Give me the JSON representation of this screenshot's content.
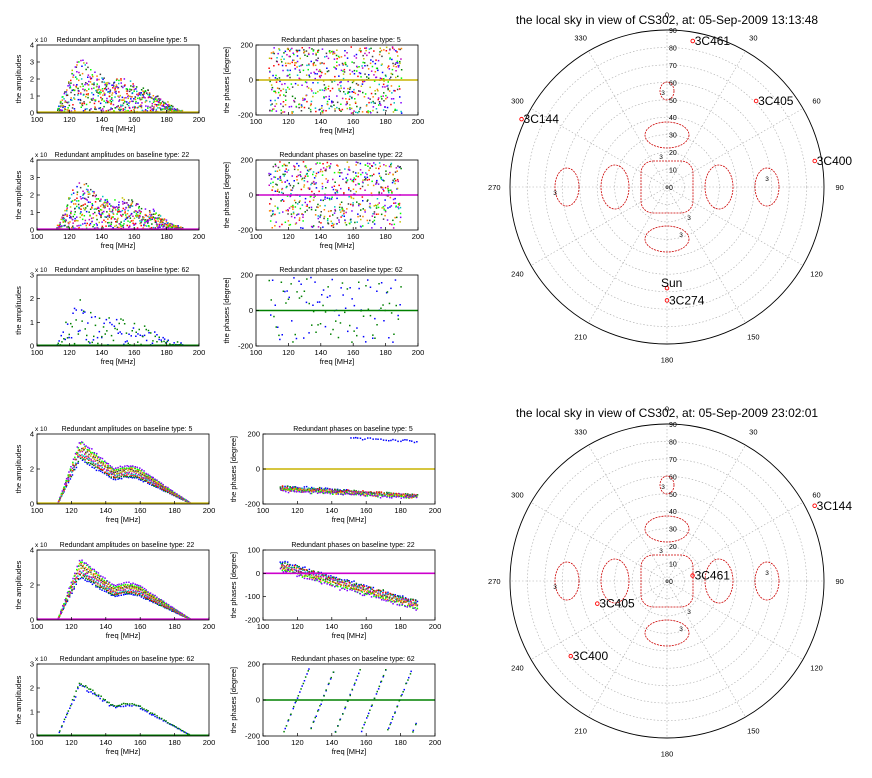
{
  "figure": {
    "colors": {
      "cycle": [
        "#0000ff",
        "#008000",
        "#ff0000",
        "#00bfbf",
        "#bf00bf",
        "#bfbf00",
        "#404040",
        "#ff8000",
        "#00ff00",
        "#8000ff"
      ],
      "flat_line_5": "#c8b400",
      "flat_line_22": "#cc00cc",
      "flat_line_62": "#008000",
      "source_marker": "#ff0000",
      "contour": "#cc0000",
      "grid": "#aaaaaa"
    }
  },
  "chart_data": [
    {
      "id": "s1_amp5",
      "type": "scatter",
      "title": "Redundant amplitudes on baseline type: 5",
      "exponent_label": "x 10",
      "xlabel": "freq [MHz]",
      "ylabel": "the amplitudes",
      "xlim": [
        100,
        200
      ],
      "ylim": [
        0,
        4
      ],
      "xticks": [
        100,
        120,
        140,
        160,
        180,
        200
      ],
      "yticks": [
        0,
        1,
        2,
        3,
        4
      ],
      "kind": "amp_noisy",
      "peak": 2.6,
      "flat_value": 0.05,
      "flat_color": "flat_line_5",
      "n_series": 10
    },
    {
      "id": "s1_ph5",
      "type": "scatter",
      "title": "Redundant phases on baseline type: 5",
      "xlabel": "freq [MHz]",
      "ylabel": "the phases [degree]",
      "xlim": [
        100,
        200
      ],
      "ylim": [
        -200,
        200
      ],
      "xticks": [
        100,
        120,
        140,
        160,
        180,
        200
      ],
      "yticks": [
        -200,
        0,
        200
      ],
      "kind": "phase_noisy",
      "flat_value": 0,
      "flat_color": "flat_line_5",
      "n_series": 10
    },
    {
      "id": "s1_amp22",
      "type": "scatter",
      "title": "Redundant amplitudes on baseline type: 22",
      "exponent_label": "x 10",
      "xlabel": "freq [MHz]",
      "ylabel": "the amplitudes",
      "xlim": [
        100,
        200
      ],
      "ylim": [
        0,
        4
      ],
      "xticks": [
        100,
        120,
        140,
        160,
        180,
        200
      ],
      "yticks": [
        0,
        1,
        2,
        3,
        4
      ],
      "kind": "amp_noisy",
      "peak": 2.4,
      "flat_value": 0.05,
      "flat_color": "flat_line_22",
      "n_series": 10
    },
    {
      "id": "s1_ph22",
      "type": "scatter",
      "title": "Redundant phases on baseline type: 22",
      "xlabel": "freq [MHz]",
      "ylabel": "the phases [degree]",
      "xlim": [
        100,
        200
      ],
      "ylim": [
        -200,
        200
      ],
      "xticks": [
        100,
        120,
        140,
        160,
        180,
        200
      ],
      "yticks": [
        -200,
        0,
        200
      ],
      "kind": "phase_noisy",
      "flat_value": 0,
      "flat_color": "flat_line_22",
      "n_series": 10
    },
    {
      "id": "s1_amp62",
      "type": "scatter",
      "title": "Redundant amplitudes on baseline type: 62",
      "exponent_label": "x 10",
      "xlabel": "freq [MHz]",
      "ylabel": "the amplitudes",
      "xlim": [
        100,
        200
      ],
      "ylim": [
        0,
        3
      ],
      "xticks": [
        100,
        120,
        140,
        160,
        180,
        200
      ],
      "yticks": [
        0,
        1,
        2,
        3
      ],
      "kind": "amp_noisy",
      "peak": 1.6,
      "flat_value": 0.03,
      "flat_color": "flat_line_62",
      "n_series": 2
    },
    {
      "id": "s1_ph62",
      "type": "scatter",
      "title": "Redundant phases on baseline type: 62",
      "xlabel": "freq [MHz]",
      "ylabel": "the phases [degree]",
      "xlim": [
        100,
        200
      ],
      "ylim": [
        -200,
        200
      ],
      "xticks": [
        100,
        120,
        140,
        160,
        180,
        200
      ],
      "yticks": [
        -200,
        0,
        200
      ],
      "kind": "phase_noisy",
      "flat_value": 0,
      "flat_color": "flat_line_62",
      "n_series": 2
    },
    {
      "id": "s2_amp5",
      "type": "scatter",
      "title": "Redundant amplitudes on baseline type: 5",
      "exponent_label": "x 10",
      "xlabel": "freq [MHz]",
      "ylabel": "the amplitudes",
      "xlim": [
        100,
        200
      ],
      "ylim": [
        0,
        4
      ],
      "xticks": [
        100,
        120,
        140,
        160,
        180,
        200
      ],
      "yticks": [
        0,
        2,
        4
      ],
      "kind": "amp_smooth",
      "peak": 3.0,
      "flat_value": 0.05,
      "flat_color": "flat_line_5",
      "n_series": 10
    },
    {
      "id": "s2_ph5",
      "type": "scatter",
      "title": "Redundant phases on baseline type: 5",
      "xlabel": "freq [MHz]",
      "ylabel": "the phases [degree]",
      "xlim": [
        100,
        200
      ],
      "ylim": [
        -200,
        200
      ],
      "xticks": [
        100,
        120,
        140,
        160,
        180,
        200
      ],
      "yticks": [
        -200,
        0,
        200
      ],
      "kind": "phase_bands",
      "flat_value": 0,
      "flat_color": "flat_line_5",
      "n_series": 10
    },
    {
      "id": "s2_amp22",
      "type": "scatter",
      "title": "Redundant amplitudes on baseline type: 22",
      "exponent_label": "x 10",
      "xlabel": "freq [MHz]",
      "ylabel": "the amplitudes",
      "xlim": [
        100,
        200
      ],
      "ylim": [
        0,
        4
      ],
      "xticks": [
        100,
        120,
        140,
        160,
        180,
        200
      ],
      "yticks": [
        0,
        2,
        4
      ],
      "kind": "amp_smooth",
      "peak": 2.9,
      "flat_value": 0.05,
      "flat_color": "flat_line_22",
      "n_series": 10
    },
    {
      "id": "s2_ph22",
      "type": "scatter",
      "title": "Redundant phases on baseline type: 22",
      "xlabel": "freq [MHz]",
      "ylabel": "the phases [degree]",
      "xlim": [
        100,
        200
      ],
      "ylim": [
        -200,
        100
      ],
      "xticks": [
        100,
        120,
        140,
        160,
        180,
        200
      ],
      "yticks": [
        -200,
        -100,
        0,
        100
      ],
      "kind": "phase_slope",
      "flat_value": 0,
      "flat_color": "flat_line_22",
      "n_series": 10
    },
    {
      "id": "s2_amp62",
      "type": "scatter",
      "title": "Redundant amplitudes on baseline type: 62",
      "exponent_label": "x 10",
      "xlabel": "freq [MHz]",
      "ylabel": "the amplitudes",
      "xlim": [
        100,
        200
      ],
      "ylim": [
        0,
        3
      ],
      "xticks": [
        100,
        120,
        140,
        160,
        180,
        200
      ],
      "yticks": [
        0,
        1,
        2,
        3
      ],
      "kind": "amp_smooth",
      "peak": 2.5,
      "flat_value": 0.03,
      "flat_color": "flat_line_62",
      "n_series": 2
    },
    {
      "id": "s2_ph62",
      "type": "scatter",
      "title": "Redundant phases on baseline type: 62",
      "xlabel": "freq [MHz]",
      "ylabel": "the phases [degree]",
      "xlim": [
        100,
        200
      ],
      "ylim": [
        -200,
        200
      ],
      "xticks": [
        100,
        120,
        140,
        160,
        180,
        200
      ],
      "yticks": [
        -200,
        0,
        200
      ],
      "kind": "phase_wrap",
      "flat_value": 0,
      "flat_color": "flat_line_62",
      "n_series": 2
    },
    {
      "id": "sky1",
      "type": "polar",
      "title": "the local sky in view of CS302, at: 05-Sep-2009 13:13:48",
      "radial_ticks": [
        0,
        10,
        20,
        30,
        40,
        50,
        60,
        70,
        80,
        90
      ],
      "azimuth_labels": [
        "0",
        "30",
        "60",
        "90",
        "120",
        "150",
        "180",
        "210",
        "240",
        "270",
        "300",
        "330"
      ],
      "sources": [
        {
          "name": "3C461",
          "az": 10,
          "zen": 85
        },
        {
          "name": "3C405",
          "az": 46,
          "zen": 71
        },
        {
          "name": "3C400",
          "az": 80,
          "zen": 86
        },
        {
          "name": "3C144",
          "az": 295,
          "zen": 92
        },
        {
          "name": "Sun",
          "az": 180,
          "zen": 58
        },
        {
          "name": "3C274",
          "az": 180,
          "zen": 65
        }
      ],
      "contour_labels": [
        "3",
        "3",
        "3",
        "3",
        "3",
        "3"
      ]
    },
    {
      "id": "sky2",
      "type": "polar",
      "title": "the local sky in view of CS302, at: 05-Sep-2009 23:02:01",
      "radial_ticks": [
        0,
        10,
        20,
        30,
        40,
        50,
        60,
        70,
        80,
        90
      ],
      "azimuth_labels": [
        "0",
        "30",
        "60",
        "90",
        "120",
        "150",
        "180",
        "210",
        "240",
        "270",
        "300",
        "330"
      ],
      "sources": [
        {
          "name": "3C144",
          "az": 63,
          "zen": 95
        },
        {
          "name": "3C461",
          "az": 78,
          "zen": 15
        },
        {
          "name": "3C405",
          "az": 252,
          "zen": 42
        },
        {
          "name": "3C400",
          "az": 232,
          "zen": 70
        }
      ],
      "contour_labels": [
        "3",
        "3",
        "3",
        "3",
        "3",
        "3"
      ]
    }
  ]
}
